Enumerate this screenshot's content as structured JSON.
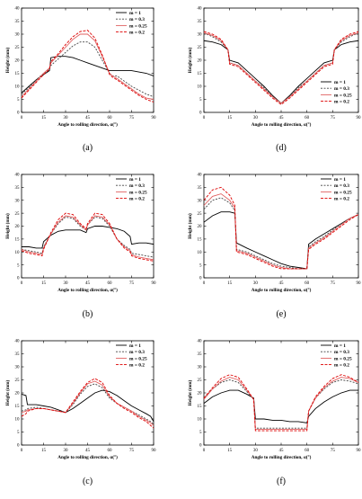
{
  "figure": {
    "x_tick_labels": [
      "0",
      "15",
      "30",
      "45",
      "60",
      "75",
      "90"
    ],
    "y_tick_labels": [
      "0",
      "5",
      "10",
      "15",
      "20",
      "25",
      "30",
      "35",
      "40"
    ],
    "xlabel": "Angle to rolling direction, α(°)",
    "ylabel": "Height (mm)"
  },
  "series_styles": [
    {
      "name": "m = 1",
      "color": "#000000",
      "dash": ""
    },
    {
      "name": "m = 0.3",
      "color": "#444444",
      "dash": "2,1.5"
    },
    {
      "name": "m = 0.25",
      "color": "#e06060",
      "dash": ""
    },
    {
      "name": "m = 0.2",
      "color": "#dd0000",
      "dash": "3,1.5"
    }
  ],
  "chart_data": [
    {
      "type": "line",
      "caption": "(a)",
      "xlabel": "Angle to rolling direction, α(°)",
      "ylabel": "Height (mm)",
      "xlim": [
        0,
        90
      ],
      "ylim": [
        0,
        40
      ],
      "legend_position": "top-right",
      "x": [
        0,
        5,
        10,
        15,
        19,
        20,
        25,
        30,
        35,
        40,
        45,
        50,
        55,
        60,
        62,
        65,
        70,
        75,
        80,
        85,
        90
      ],
      "series": [
        {
          "name": "m = 1",
          "values": [
            7.5,
            10,
            12.5,
            14.5,
            16,
            21,
            21.5,
            21.5,
            21,
            20,
            19,
            18,
            17,
            16,
            16,
            16,
            16,
            16,
            15.5,
            15,
            14
          ]
        },
        {
          "name": "m = 0.3",
          "values": [
            7,
            9.5,
            12.5,
            15,
            16.5,
            18,
            20.5,
            23,
            25.5,
            27,
            27,
            25,
            20,
            15,
            14,
            14,
            12,
            10,
            8.5,
            7,
            6
          ]
        },
        {
          "name": "m = 0.25",
          "values": [
            6,
            9,
            12,
            15,
            17,
            19,
            22,
            25,
            28,
            30,
            30,
            27.5,
            21.5,
            15,
            14,
            13,
            11,
            9,
            7,
            5.5,
            5
          ]
        },
        {
          "name": "m = 0.2",
          "values": [
            5.5,
            8.5,
            11.5,
            14.5,
            16.5,
            19.5,
            22.5,
            26,
            29,
            31,
            31.5,
            28.5,
            22,
            14.5,
            13.5,
            12.5,
            10.5,
            8.5,
            6.5,
            5,
            4
          ]
        }
      ]
    },
    {
      "type": "line",
      "caption": "(d)",
      "xlabel": "Angle to rolling direction, α(°)",
      "ylabel": "Height (mm)",
      "xlim": [
        0,
        90
      ],
      "ylim": [
        0,
        40
      ],
      "legend_position": "bottom-right",
      "x": [
        0,
        5,
        10,
        14,
        15,
        20,
        25,
        30,
        35,
        40,
        45,
        50,
        55,
        60,
        65,
        70,
        75,
        76,
        80,
        85,
        90
      ],
      "series": [
        {
          "name": "m = 1",
          "values": [
            27.5,
            27,
            26,
            24,
            20,
            19,
            16,
            13,
            10,
            6.5,
            3.5,
            6.5,
            10,
            13,
            16,
            19,
            20,
            24,
            26,
            27,
            27.5
          ]
        },
        {
          "name": "m = 0.3",
          "values": [
            30.5,
            29,
            27,
            24,
            19,
            18,
            15,
            12,
            9.5,
            6,
            3.5,
            6,
            9.5,
            12,
            15,
            18,
            19,
            24,
            27,
            29,
            30.5
          ]
        },
        {
          "name": "m = 0.25",
          "values": [
            30.5,
            29.5,
            27.5,
            24,
            19,
            18,
            15,
            12,
            9,
            6,
            3.5,
            6,
            9,
            12,
            15,
            18,
            19,
            24,
            27.5,
            29.5,
            30.5
          ]
        },
        {
          "name": "m = 0.2",
          "values": [
            31,
            30,
            28,
            24,
            18.5,
            17.5,
            14.5,
            11.5,
            8.5,
            5.5,
            3,
            5.5,
            8.5,
            11.5,
            14.5,
            17.5,
            18.5,
            24,
            28,
            30,
            31
          ]
        }
      ]
    },
    {
      "type": "line",
      "caption": "(b)",
      "xlabel": "Angle to rolling direction, α(°)",
      "ylabel": "Height (mm)",
      "xlim": [
        0,
        90
      ],
      "ylim": [
        0,
        40
      ],
      "legend_position": "top-right",
      "x": [
        0,
        5,
        10,
        14,
        15,
        20,
        25,
        30,
        35,
        40,
        44,
        45,
        50,
        55,
        60,
        65,
        70,
        74,
        75,
        80,
        85,
        90
      ],
      "series": [
        {
          "name": "m = 1",
          "values": [
            12,
            12,
            11.5,
            11.5,
            14,
            16.5,
            18,
            18.5,
            18.5,
            18.5,
            17.5,
            19,
            20,
            20,
            19.5,
            19,
            18,
            16,
            13,
            13.5,
            13.5,
            13
          ]
        },
        {
          "name": "m = 0.3",
          "values": [
            11,
            10.5,
            10,
            9.5,
            12,
            17,
            21,
            23.5,
            23,
            20,
            18.5,
            20.5,
            23.5,
            23,
            20,
            15,
            12.5,
            11,
            9.5,
            9,
            8.5,
            8
          ]
        },
        {
          "name": "m = 0.25",
          "values": [
            11,
            10,
            9.5,
            9,
            11.5,
            17,
            21.5,
            24,
            23.5,
            20.5,
            18.5,
            20.5,
            24,
            23.5,
            20.5,
            15,
            12,
            10.5,
            9,
            8,
            7.5,
            7
          ]
        },
        {
          "name": "m = 0.2",
          "values": [
            10.5,
            9.5,
            9,
            8.5,
            11,
            17.5,
            22.5,
            25,
            24.5,
            21,
            19,
            21,
            25,
            24.5,
            21,
            15,
            11.5,
            10,
            8.5,
            7.5,
            7,
            6.5
          ]
        }
      ]
    },
    {
      "type": "line",
      "caption": "(e)",
      "xlabel": "Angle to rolling direction, α(°)",
      "ylabel": "Height (mm)",
      "xlim": [
        0,
        90
      ],
      "ylim": [
        0,
        40
      ],
      "legend_position": "top-right",
      "x": [
        0,
        5,
        10,
        15,
        18,
        19,
        25,
        30,
        35,
        40,
        45,
        50,
        55,
        60,
        61,
        65,
        70,
        75,
        80,
        85,
        90
      ],
      "series": [
        {
          "name": "m = 1",
          "values": [
            21.5,
            24,
            25.5,
            25.5,
            25,
            13.5,
            11.5,
            10,
            8.5,
            7,
            5.5,
            4.5,
            4,
            3.5,
            13,
            15,
            17,
            19,
            21,
            23,
            24.5
          ]
        },
        {
          "name": "m = 0.3",
          "values": [
            26.5,
            30,
            31,
            29,
            26,
            11,
            10,
            8.5,
            7,
            5.5,
            4.5,
            4,
            3.5,
            3.5,
            12,
            14,
            16,
            18.5,
            21,
            23,
            24.5
          ]
        },
        {
          "name": "m = 0.25",
          "values": [
            28,
            31.5,
            32.5,
            30,
            27,
            10.5,
            9.5,
            8,
            6.5,
            5,
            4,
            3.5,
            3.5,
            3.5,
            11.5,
            13.5,
            15.5,
            18,
            20.5,
            23,
            24.5
          ]
        },
        {
          "name": "m = 0.2",
          "values": [
            30,
            34,
            35,
            32,
            28,
            10,
            9,
            7.5,
            6,
            4.5,
            3.5,
            3.5,
            3.5,
            3.5,
            11,
            13,
            15,
            17.5,
            20,
            22.5,
            24.5
          ]
        }
      ]
    },
    {
      "type": "line",
      "caption": "(c)",
      "xlabel": "Angle to rolling direction, α(°)",
      "ylabel": "Height (mm)",
      "xlim": [
        0,
        90
      ],
      "ylim": [
        0,
        40
      ],
      "legend_position": "top-right",
      "x": [
        0,
        3,
        4,
        10,
        15,
        20,
        25,
        30,
        35,
        40,
        45,
        50,
        55,
        60,
        65,
        70,
        75,
        80,
        85,
        88,
        90
      ],
      "series": [
        {
          "name": "m = 1",
          "values": [
            19.5,
            19,
            15.5,
            15.5,
            15,
            14.5,
            13.5,
            12.5,
            14,
            16,
            18,
            20,
            21,
            20.5,
            19,
            17,
            15,
            13.5,
            12,
            11,
            9
          ]
        },
        {
          "name": "m = 0.3",
          "values": [
            13,
            13.5,
            14,
            14.5,
            14,
            13.5,
            13,
            12.5,
            15.5,
            19.5,
            22.5,
            23.5,
            22,
            18,
            16,
            14.5,
            13,
            11.5,
            10,
            9,
            8
          ]
        },
        {
          "name": "m = 0.25",
          "values": [
            12.5,
            13,
            13.5,
            14,
            14,
            13.5,
            13,
            12.5,
            16,
            20,
            23.5,
            24.5,
            23,
            18.5,
            16,
            14.5,
            13,
            11,
            9.5,
            8.5,
            7.5
          ]
        },
        {
          "name": "m = 0.2",
          "values": [
            11,
            12,
            13,
            14,
            14,
            13.5,
            13,
            12.5,
            16.5,
            20.5,
            24,
            25.5,
            24,
            19,
            16,
            14,
            12.5,
            10.5,
            9,
            7.5,
            6.5
          ]
        }
      ]
    },
    {
      "type": "line",
      "caption": "(f)",
      "xlabel": "Angle to rolling direction, α(°)",
      "ylabel": "Height (mm)",
      "xlim": [
        0,
        90
      ],
      "ylim": [
        0,
        40
      ],
      "legend_position": "top-right",
      "x": [
        0,
        5,
        10,
        15,
        20,
        25,
        29,
        30,
        35,
        40,
        45,
        50,
        55,
        60,
        61,
        65,
        70,
        75,
        80,
        85,
        90
      ],
      "series": [
        {
          "name": "m = 1",
          "values": [
            16,
            18.5,
            20,
            21,
            21,
            19.5,
            18,
            10,
            10,
            9.5,
            9.5,
            9,
            9,
            8.5,
            11,
            14,
            16.5,
            18.5,
            20,
            21,
            21
          ]
        },
        {
          "name": "m = 0.3",
          "values": [
            18,
            21.5,
            24,
            25,
            24,
            20.5,
            17.5,
            6.5,
            6.5,
            6.5,
            6.5,
            6.5,
            6.5,
            6.5,
            13,
            18,
            21.5,
            24,
            25,
            24.5,
            23.5
          ]
        },
        {
          "name": "m = 0.25",
          "values": [
            17.5,
            21.5,
            24.5,
            26,
            25,
            21,
            17.5,
            6,
            6,
            6,
            6,
            6,
            6,
            6,
            13,
            18,
            22,
            24.5,
            26,
            25.5,
            24
          ]
        },
        {
          "name": "m = 0.2",
          "values": [
            18,
            22,
            25.5,
            27,
            26,
            21.5,
            17.5,
            5.5,
            5.5,
            5.5,
            5.5,
            5.5,
            5.5,
            5.5,
            13,
            18.5,
            22.5,
            25.5,
            27,
            26,
            24
          ]
        }
      ]
    }
  ]
}
